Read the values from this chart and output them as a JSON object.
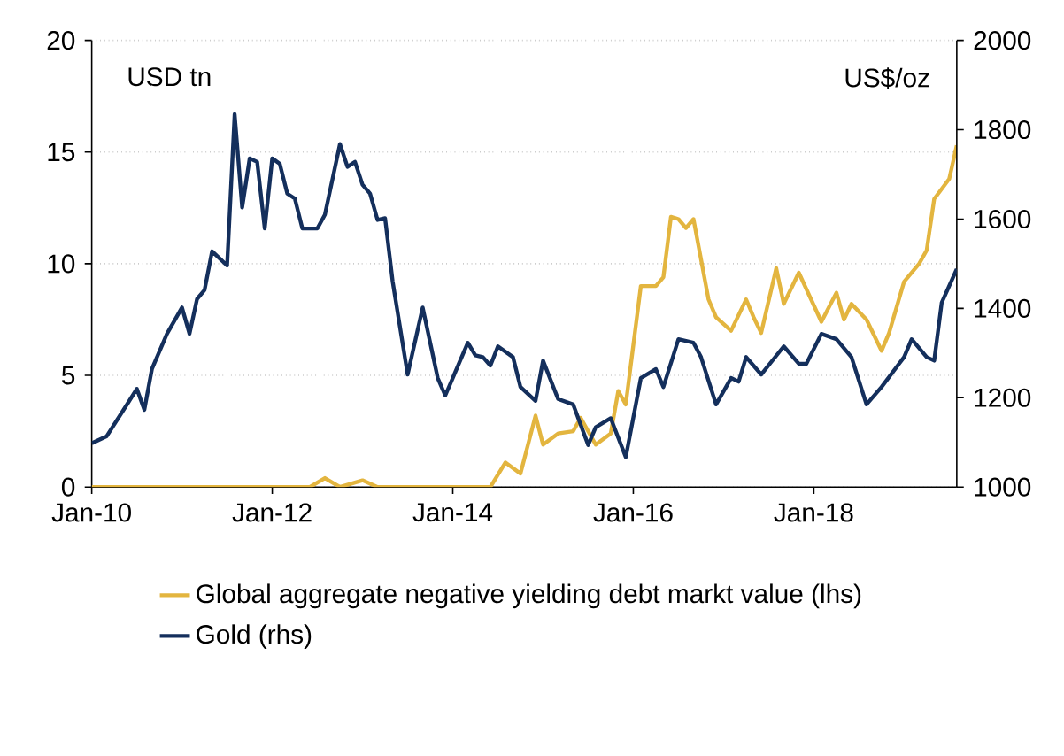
{
  "chart_data": {
    "type": "line",
    "ylabel": "USD tn",
    "y2label": "US$/oz",
    "xlim": [
      "2010-01",
      "2019-08"
    ],
    "xticks": [
      {
        "value": "2010-01",
        "label": "Jan-10"
      },
      {
        "value": "2012-01",
        "label": "Jan-12"
      },
      {
        "value": "2014-01",
        "label": "Jan-14"
      },
      {
        "value": "2016-01",
        "label": "Jan-16"
      },
      {
        "value": "2018-01",
        "label": "Jan-18"
      }
    ],
    "ylim": [
      0,
      20
    ],
    "yticks": [
      0,
      5,
      10,
      15,
      20
    ],
    "y2lim": [
      1000,
      2000
    ],
    "y2ticks": [
      1000,
      1200,
      1400,
      1600,
      1800,
      2000
    ],
    "grid": "y",
    "legend": "bottom",
    "marker": "none",
    "line_style": "solid",
    "series": [
      {
        "name": "Global aggregate negative yielding debt markt value (lhs)",
        "color": "#e3b53f",
        "axis": "y",
        "x": [
          "2010-01",
          "2012-06",
          "2012-08",
          "2012-10",
          "2013-01",
          "2013-03",
          "2014-06",
          "2014-08",
          "2014-10",
          "2014-12",
          "2015-01",
          "2015-03",
          "2015-05",
          "2015-06",
          "2015-08",
          "2015-10",
          "2015-11",
          "2015-12",
          "2016-02",
          "2016-04",
          "2016-05",
          "2016-06",
          "2016-07",
          "2016-08",
          "2016-09",
          "2016-11",
          "2016-12",
          "2017-02",
          "2017-04",
          "2017-05",
          "2017-06",
          "2017-08",
          "2017-09",
          "2017-11",
          "2018-02",
          "2018-04",
          "2018-05",
          "2018-06",
          "2018-08",
          "2018-10",
          "2018-11",
          "2019-01",
          "2019-03",
          "2019-04",
          "2019-05",
          "2019-07",
          "2019-08"
        ],
        "values": [
          0,
          0,
          0.4,
          0,
          0.3,
          0,
          0,
          1.1,
          0.6,
          3.2,
          1.9,
          2.4,
          2.5,
          3.1,
          1.9,
          2.4,
          4.3,
          3.7,
          9.0,
          9.0,
          9.4,
          12.1,
          12.0,
          11.6,
          12.0,
          8.4,
          7.6,
          7.0,
          8.4,
          7.6,
          6.9,
          9.8,
          8.2,
          9.6,
          7.4,
          8.7,
          7.5,
          8.2,
          7.5,
          6.1,
          6.9,
          9.2,
          10.0,
          10.6,
          12.9,
          13.8,
          15.3
        ]
      },
      {
        "name": "Gold (rhs)",
        "color": "#142f5c",
        "axis": "y2",
        "x": [
          "2010-01",
          "2010-03",
          "2010-06",
          "2010-07",
          "2010-08",
          "2010-09",
          "2010-11",
          "2011-01",
          "2011-02",
          "2011-03",
          "2011-04",
          "2011-05",
          "2011-06",
          "2011-07",
          "2011-08",
          "2011-09",
          "2011-10",
          "2011-11",
          "2011-12",
          "2012-01",
          "2012-02",
          "2012-03",
          "2012-04",
          "2012-05",
          "2012-07",
          "2012-08",
          "2012-10",
          "2012-11",
          "2012-12",
          "2013-01",
          "2013-02",
          "2013-03",
          "2013-04",
          "2013-05",
          "2013-07",
          "2013-09",
          "2013-10",
          "2013-11",
          "2013-12",
          "2014-03",
          "2014-04",
          "2014-05",
          "2014-06",
          "2014-07",
          "2014-09",
          "2014-10",
          "2014-12",
          "2015-01",
          "2015-03",
          "2015-05",
          "2015-07",
          "2015-08",
          "2015-10",
          "2015-12",
          "2016-02",
          "2016-04",
          "2016-05",
          "2016-07",
          "2016-09",
          "2016-10",
          "2016-12",
          "2017-02",
          "2017-03",
          "2017-04",
          "2017-06",
          "2017-09",
          "2017-11",
          "2017-12",
          "2018-02",
          "2018-04",
          "2018-06",
          "2018-08",
          "2018-10",
          "2019-01",
          "2019-02",
          "2019-04",
          "2019-05",
          "2019-06",
          "2019-08"
        ],
        "values": [
          1098,
          1114,
          1193,
          1220,
          1173,
          1264,
          1343,
          1402,
          1343,
          1421,
          1441,
          1528,
          1512,
          1496,
          1835,
          1626,
          1736,
          1728,
          1579,
          1736,
          1724,
          1657,
          1646,
          1579,
          1579,
          1610,
          1768,
          1717,
          1728,
          1677,
          1657,
          1598,
          1602,
          1461,
          1252,
          1402,
          1323,
          1244,
          1205,
          1323,
          1295,
          1291,
          1272,
          1315,
          1291,
          1224,
          1193,
          1283,
          1197,
          1185,
          1094,
          1134,
          1154,
          1067,
          1244,
          1264,
          1224,
          1331,
          1323,
          1291,
          1185,
          1244,
          1236,
          1291,
          1252,
          1315,
          1276,
          1276,
          1343,
          1331,
          1291,
          1185,
          1224,
          1291,
          1331,
          1291,
          1283,
          1413,
          1488
        ]
      }
    ]
  }
}
